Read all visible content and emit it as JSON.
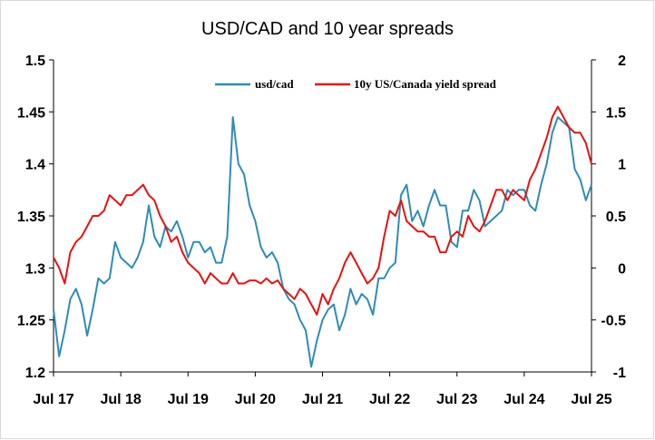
{
  "chart_data": {
    "type": "line",
    "title": "USD/CAD and 10 year spreads",
    "xlabel": "",
    "ylabel": "",
    "x_ticks": [
      "Jul 17",
      "Jul 18",
      "Jul 19",
      "Jul 20",
      "Jul 21",
      "Jul 22",
      "Jul 23",
      "Jul 24",
      "Jul 25"
    ],
    "x_range": [
      "2017-07",
      "2025-07"
    ],
    "y_left": {
      "min": 1.2,
      "max": 1.5,
      "ticks": [
        "1.2",
        "1.25",
        "1.3",
        "1.35",
        "1.4",
        "1.45",
        "1.5"
      ]
    },
    "y_right": {
      "min": -1,
      "max": 2,
      "ticks": [
        "-1",
        "-0.5",
        "0",
        "0.5",
        "1",
        "1.5",
        "2"
      ]
    },
    "grid": false,
    "legend_position": "top",
    "series": [
      {
        "name": "usd/cad",
        "axis": "left",
        "color": "#2e8bb8",
        "x": [
          "2017-07",
          "2017-08",
          "2017-09",
          "2017-10",
          "2017-11",
          "2017-12",
          "2018-01",
          "2018-02",
          "2018-03",
          "2018-04",
          "2018-05",
          "2018-06",
          "2018-07",
          "2018-08",
          "2018-09",
          "2018-10",
          "2018-11",
          "2018-12",
          "2019-01",
          "2019-02",
          "2019-03",
          "2019-04",
          "2019-05",
          "2019-06",
          "2019-07",
          "2019-08",
          "2019-09",
          "2019-10",
          "2019-11",
          "2019-12",
          "2020-01",
          "2020-02",
          "2020-03",
          "2020-04",
          "2020-05",
          "2020-06",
          "2020-07",
          "2020-08",
          "2020-09",
          "2020-10",
          "2020-11",
          "2020-12",
          "2021-01",
          "2021-02",
          "2021-03",
          "2021-04",
          "2021-05",
          "2021-06",
          "2021-07",
          "2021-08",
          "2021-09",
          "2021-10",
          "2021-11",
          "2021-12",
          "2022-01",
          "2022-02",
          "2022-03",
          "2022-04",
          "2022-05",
          "2022-06",
          "2022-07",
          "2022-08",
          "2022-09",
          "2022-10",
          "2022-11",
          "2022-12",
          "2023-01",
          "2023-02",
          "2023-03",
          "2023-04",
          "2023-05",
          "2023-06",
          "2023-07",
          "2023-08",
          "2023-09",
          "2023-10",
          "2023-11",
          "2023-12",
          "2024-01",
          "2024-02",
          "2024-03",
          "2024-04",
          "2024-05",
          "2024-06",
          "2024-07",
          "2024-08",
          "2024-09",
          "2024-10",
          "2024-11",
          "2024-12",
          "2025-01",
          "2025-02",
          "2025-03",
          "2025-04",
          "2025-05",
          "2025-06",
          "2025-07"
        ],
        "values": [
          1.26,
          1.215,
          1.24,
          1.27,
          1.28,
          1.265,
          1.235,
          1.26,
          1.29,
          1.285,
          1.29,
          1.325,
          1.31,
          1.305,
          1.3,
          1.31,
          1.325,
          1.36,
          1.33,
          1.32,
          1.34,
          1.335,
          1.345,
          1.33,
          1.31,
          1.325,
          1.325,
          1.315,
          1.32,
          1.305,
          1.305,
          1.33,
          1.445,
          1.4,
          1.39,
          1.36,
          1.345,
          1.32,
          1.31,
          1.315,
          1.305,
          1.28,
          1.27,
          1.265,
          1.25,
          1.24,
          1.205,
          1.23,
          1.25,
          1.26,
          1.265,
          1.24,
          1.255,
          1.28,
          1.265,
          1.275,
          1.27,
          1.255,
          1.29,
          1.29,
          1.3,
          1.305,
          1.37,
          1.38,
          1.345,
          1.355,
          1.34,
          1.36,
          1.375,
          1.36,
          1.36,
          1.325,
          1.32,
          1.355,
          1.355,
          1.375,
          1.365,
          1.34,
          1.345,
          1.35,
          1.355,
          1.375,
          1.37,
          1.375,
          1.375,
          1.36,
          1.355,
          1.38,
          1.4,
          1.43,
          1.445,
          1.44,
          1.435,
          1.395,
          1.385,
          1.365,
          1.38
        ]
      },
      {
        "name": "10y US/Canada yield spread",
        "axis": "right",
        "color": "#e8110f",
        "x": [
          "2017-07",
          "2017-08",
          "2017-09",
          "2017-10",
          "2017-11",
          "2017-12",
          "2018-01",
          "2018-02",
          "2018-03",
          "2018-04",
          "2018-05",
          "2018-06",
          "2018-07",
          "2018-08",
          "2018-09",
          "2018-10",
          "2018-11",
          "2018-12",
          "2019-01",
          "2019-02",
          "2019-03",
          "2019-04",
          "2019-05",
          "2019-06",
          "2019-07",
          "2019-08",
          "2019-09",
          "2019-10",
          "2019-11",
          "2019-12",
          "2020-01",
          "2020-02",
          "2020-03",
          "2020-04",
          "2020-05",
          "2020-06",
          "2020-07",
          "2020-08",
          "2020-09",
          "2020-10",
          "2020-11",
          "2020-12",
          "2021-01",
          "2021-02",
          "2021-03",
          "2021-04",
          "2021-05",
          "2021-06",
          "2021-07",
          "2021-08",
          "2021-09",
          "2021-10",
          "2021-11",
          "2021-12",
          "2022-01",
          "2022-02",
          "2022-03",
          "2022-04",
          "2022-05",
          "2022-06",
          "2022-07",
          "2022-08",
          "2022-09",
          "2022-10",
          "2022-11",
          "2022-12",
          "2023-01",
          "2023-02",
          "2023-03",
          "2023-04",
          "2023-05",
          "2023-06",
          "2023-07",
          "2023-08",
          "2023-09",
          "2023-10",
          "2023-11",
          "2023-12",
          "2024-01",
          "2024-02",
          "2024-03",
          "2024-04",
          "2024-05",
          "2024-06",
          "2024-07",
          "2024-08",
          "2024-09",
          "2024-10",
          "2024-11",
          "2024-12",
          "2025-01",
          "2025-02",
          "2025-03",
          "2025-04",
          "2025-05",
          "2025-06",
          "2025-07"
        ],
        "values": [
          0.1,
          0.0,
          -0.15,
          0.15,
          0.25,
          0.3,
          0.4,
          0.5,
          0.5,
          0.55,
          0.7,
          0.65,
          0.6,
          0.7,
          0.7,
          0.75,
          0.8,
          0.7,
          0.65,
          0.5,
          0.4,
          0.25,
          0.3,
          0.15,
          0.05,
          0.0,
          -0.05,
          -0.15,
          -0.05,
          -0.1,
          -0.15,
          -0.15,
          -0.05,
          -0.15,
          -0.15,
          -0.12,
          -0.12,
          -0.15,
          -0.1,
          -0.15,
          -0.12,
          -0.2,
          -0.25,
          -0.3,
          -0.2,
          -0.25,
          -0.35,
          -0.45,
          -0.25,
          -0.35,
          -0.2,
          -0.1,
          0.05,
          0.15,
          0.05,
          -0.05,
          -0.15,
          -0.1,
          0.0,
          0.3,
          0.55,
          0.5,
          0.65,
          0.45,
          0.4,
          0.35,
          0.35,
          0.3,
          0.3,
          0.15,
          0.15,
          0.3,
          0.35,
          0.3,
          0.5,
          0.4,
          0.35,
          0.45,
          0.6,
          0.75,
          0.75,
          0.65,
          0.75,
          0.7,
          0.65,
          0.85,
          0.95,
          1.1,
          1.25,
          1.45,
          1.55,
          1.45,
          1.35,
          1.3,
          1.3,
          1.2,
          1.0
        ]
      }
    ]
  }
}
